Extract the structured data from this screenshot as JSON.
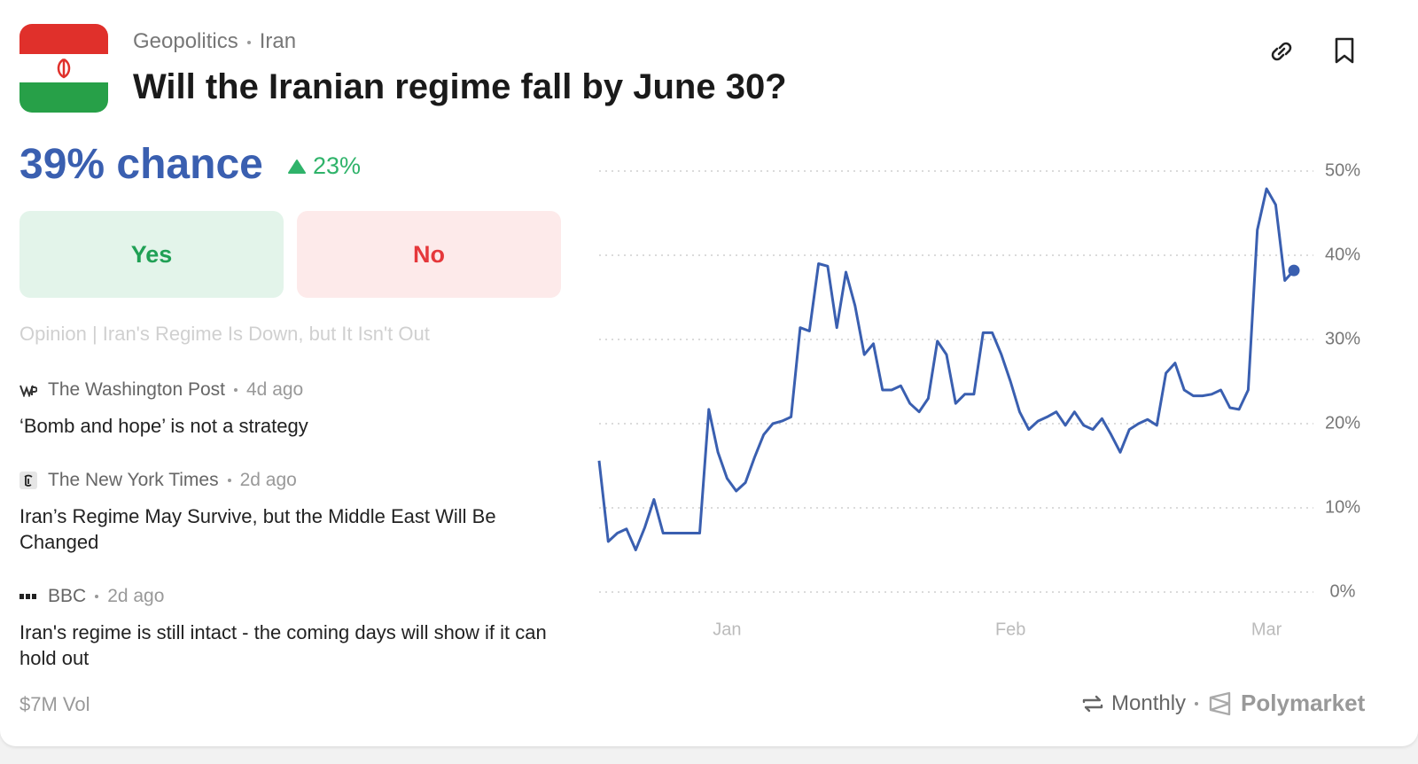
{
  "header": {
    "category": "Geopolitics",
    "tag": "Iran",
    "title": "Will the Iranian regime fall by June 30?"
  },
  "odds": {
    "chance": "39% chance",
    "change": "23%"
  },
  "buttons": {
    "yes": "Yes",
    "no": "No"
  },
  "faded_headline": "Opinion | Iran's Regime Is Down, but It Isn't Out",
  "news": [
    {
      "source": "The Washington Post",
      "time": "4d ago",
      "headline": "‘Bomb and hope’ is not a strategy"
    },
    {
      "source": "The New York Times",
      "time": "2d ago",
      "headline": "Iran’s Regime May Survive, but the Middle East Will Be Changed"
    },
    {
      "source": "BBC",
      "time": "2d ago",
      "headline": "Iran's regime is still intact - the coming days will show if it can hold out"
    }
  ],
  "footer": {
    "volume": "$7M Vol",
    "interval": "Monthly",
    "brand": "Polymarket"
  },
  "chart_data": {
    "type": "line",
    "categories": [
      null,
      null,
      null,
      null,
      null,
      null,
      null,
      null,
      null,
      null,
      null,
      null,
      null,
      null,
      "Jan",
      null,
      null,
      null,
      null,
      null,
      null,
      null,
      null,
      null,
      null,
      null,
      null,
      null,
      null,
      null,
      null,
      null,
      null,
      null,
      null,
      null,
      null,
      null,
      null,
      null,
      null,
      null,
      null,
      null,
      null,
      "Feb",
      null,
      null,
      null,
      null,
      null,
      null,
      null,
      null,
      null,
      null,
      null,
      null,
      null,
      null,
      null,
      null,
      null,
      null,
      null,
      null,
      null,
      null,
      null,
      null,
      null,
      null,
      null,
      "Mar",
      null,
      null,
      null
    ],
    "series": [
      {
        "color": "#3a5fb0",
        "values": [
          15.6,
          6,
          7,
          7.5,
          5,
          7.7,
          11,
          7,
          7,
          7,
          7,
          7,
          21.7,
          16.6,
          13.5,
          12,
          13,
          16,
          18.7,
          20,
          20.3,
          20.8,
          31.4,
          31,
          39,
          38.7,
          31.4,
          38,
          34,
          28.2,
          29.5,
          24,
          24,
          24.5,
          22.4,
          21.4,
          23,
          29.8,
          28.2,
          22.4,
          23.5,
          23.5,
          30.8,
          30.8,
          28.2,
          25,
          21.4,
          19.3,
          20.3,
          20.8,
          21.4,
          19.8,
          21.4,
          19.8,
          19.3,
          20.6,
          18.7,
          16.6,
          19.3,
          20,
          20.5,
          19.8,
          26,
          27.2,
          24,
          23.3,
          23.3,
          23.5,
          24,
          21.9,
          21.7,
          24,
          43,
          47.9,
          46,
          37,
          38.2
        ]
      }
    ],
    "ylim": [
      0,
      50
    ],
    "yticks": [
      {
        "value": 0,
        "label": "0%"
      },
      {
        "value": 10,
        "label": "10%"
      },
      {
        "value": 20,
        "label": "20%"
      },
      {
        "value": 30,
        "label": "30%"
      },
      {
        "value": 40,
        "label": "40%"
      },
      {
        "value": 50,
        "label": "50%"
      }
    ],
    "grid": true
  }
}
